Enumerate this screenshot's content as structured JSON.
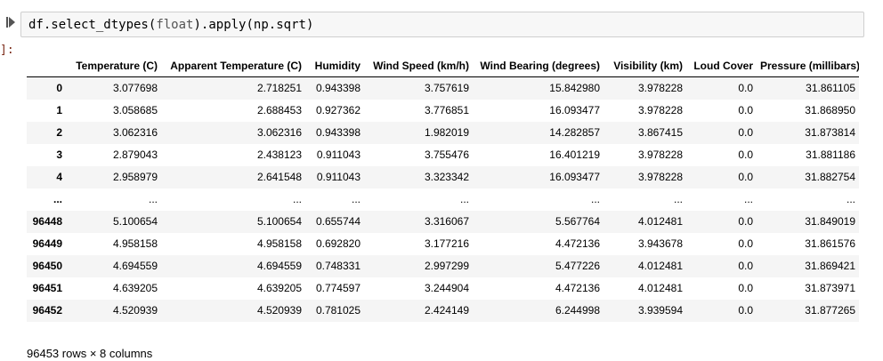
{
  "cell": {
    "code": {
      "obj": "df",
      "method1": ".select_dtypes",
      "arg1": "float",
      "method2": ".apply",
      "arg2": "np.sqrt"
    },
    "out_prompt": "]:"
  },
  "dataframe": {
    "index_header": "",
    "columns": [
      "Temperature (C)",
      "Apparent Temperature (C)",
      "Humidity",
      "Wind Speed (km/h)",
      "Wind Bearing (degrees)",
      "Visibility (km)",
      "Loud Cover",
      "Pressure (millibars)"
    ],
    "rows": [
      {
        "index": "0",
        "cells": [
          "3.077698",
          "2.718251",
          "0.943398",
          "3.757619",
          "15.842980",
          "3.978228",
          "0.0",
          "31.861105"
        ]
      },
      {
        "index": "1",
        "cells": [
          "3.058685",
          "2.688453",
          "0.927362",
          "3.776851",
          "16.093477",
          "3.978228",
          "0.0",
          "31.868950"
        ]
      },
      {
        "index": "2",
        "cells": [
          "3.062316",
          "3.062316",
          "0.943398",
          "1.982019",
          "14.282857",
          "3.867415",
          "0.0",
          "31.873814"
        ]
      },
      {
        "index": "3",
        "cells": [
          "2.879043",
          "2.438123",
          "0.911043",
          "3.755476",
          "16.401219",
          "3.978228",
          "0.0",
          "31.881186"
        ]
      },
      {
        "index": "4",
        "cells": [
          "2.958979",
          "2.641548",
          "0.911043",
          "3.323342",
          "16.093477",
          "3.978228",
          "0.0",
          "31.882754"
        ]
      },
      {
        "index": "...",
        "cells": [
          "...",
          "...",
          "...",
          "...",
          "...",
          "...",
          "...",
          "..."
        ]
      },
      {
        "index": "96448",
        "cells": [
          "5.100654",
          "5.100654",
          "0.655744",
          "3.316067",
          "5.567764",
          "4.012481",
          "0.0",
          "31.849019"
        ]
      },
      {
        "index": "96449",
        "cells": [
          "4.958158",
          "4.958158",
          "0.692820",
          "3.177216",
          "4.472136",
          "3.943678",
          "0.0",
          "31.861576"
        ]
      },
      {
        "index": "96450",
        "cells": [
          "4.694559",
          "4.694559",
          "0.748331",
          "2.997299",
          "5.477226",
          "4.012481",
          "0.0",
          "31.869421"
        ]
      },
      {
        "index": "96451",
        "cells": [
          "4.639205",
          "4.639205",
          "0.774597",
          "3.244904",
          "4.472136",
          "4.012481",
          "0.0",
          "31.873971"
        ]
      },
      {
        "index": "96452",
        "cells": [
          "4.520939",
          "4.520939",
          "0.781025",
          "2.424149",
          "6.244998",
          "3.939594",
          "0.0",
          "31.877265"
        ]
      }
    ],
    "summary": "96453 rows × 8 columns"
  }
}
